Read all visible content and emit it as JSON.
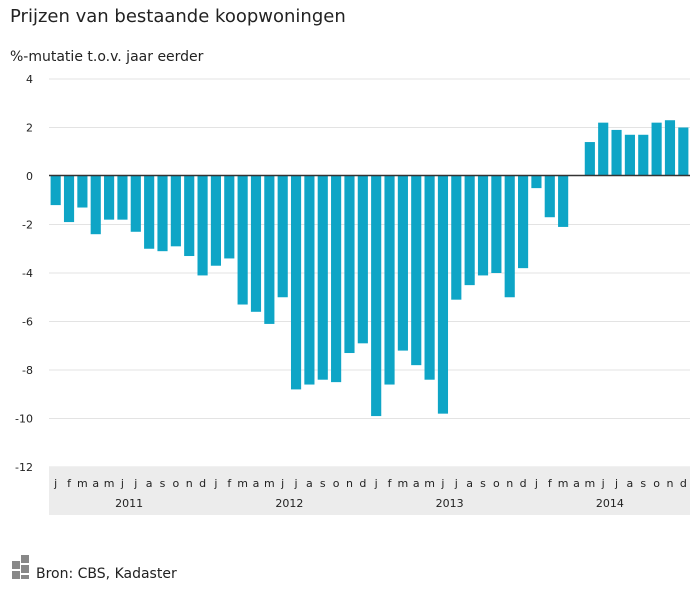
{
  "chart_data": {
    "type": "bar",
    "title": "Prijzen van bestaande koopwoningen",
    "subtitle": "%-mutatie t.o.v. jaar eerder",
    "ylim": [
      -12,
      4
    ],
    "yticks": [
      4,
      2,
      0,
      -2,
      -4,
      -6,
      -8,
      -10,
      -12
    ],
    "grid": true,
    "bar_color": "#0ea5c6",
    "month_labels": [
      "j",
      "f",
      "m",
      "a",
      "m",
      "j",
      "j",
      "a",
      "s",
      "o",
      "n",
      "d",
      "j",
      "f",
      "m",
      "a",
      "m",
      "j",
      "j",
      "a",
      "s",
      "o",
      "n",
      "d",
      "j",
      "f",
      "m",
      "a",
      "m",
      "j",
      "j",
      "a",
      "s",
      "o",
      "n",
      "d",
      "j",
      "f",
      "m",
      "a",
      "m",
      "j",
      "j",
      "a",
      "s",
      "o",
      "n",
      "d"
    ],
    "years": [
      "2011",
      "2012",
      "2013",
      "2014"
    ],
    "values": [
      -1.2,
      -1.9,
      -1.3,
      -2.4,
      -1.8,
      -1.8,
      -2.3,
      -3.0,
      -3.1,
      -2.9,
      -3.3,
      -4.1,
      -3.7,
      -3.4,
      -5.3,
      -5.6,
      -6.1,
      -5.0,
      -8.8,
      -8.6,
      -8.4,
      -8.5,
      -7.3,
      -6.9,
      -9.9,
      -8.6,
      -7.2,
      -7.8,
      -8.4,
      -9.8,
      -5.1,
      -4.5,
      -4.1,
      -4.0,
      -5.0,
      -3.8,
      -0.5,
      -1.7,
      -2.1,
      0.0,
      1.4,
      2.2,
      1.9,
      1.7,
      1.7,
      2.2,
      2.3,
      2.0
    ]
  },
  "source": {
    "text": "Bron: CBS, Kadaster",
    "logo": "cbs-logo"
  }
}
